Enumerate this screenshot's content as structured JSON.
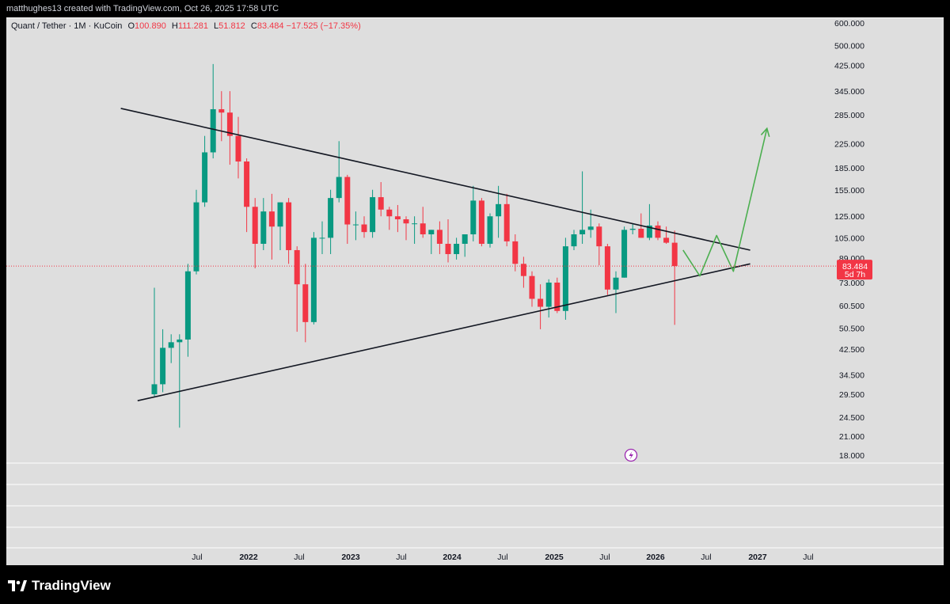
{
  "header": {
    "attribution": "matthughes13 created with TradingView.com, Oct 26, 2025 17:58 UTC"
  },
  "legend": {
    "symbol": "Quant / Tether · 1M · KuCoin",
    "open_label": "O",
    "open": "100.890",
    "high_label": "H",
    "high": "111.281",
    "low_label": "L",
    "low": "51.812",
    "close_label": "C",
    "close": "83.484",
    "change": "−17.525 (−17.35%)"
  },
  "price_badge": {
    "value": "83.484",
    "countdown": "5d 7h"
  },
  "footer": {
    "brand": "TradingView"
  },
  "colors": {
    "up": "#089981",
    "down": "#f23645",
    "background": "#dedede",
    "trendline": "#131722",
    "projection": "#4caf50"
  },
  "chart_data": {
    "type": "candlestick",
    "scale": "log",
    "ylim": [
      17,
      620
    ],
    "y_ticks": [
      "600.000",
      "500.000",
      "425.000",
      "345.000",
      "285.000",
      "225.000",
      "185.000",
      "155.000",
      "125.000",
      "105.000",
      "89.000",
      "73.000",
      "60.500",
      "50.500",
      "42.500",
      "34.500",
      "29.500",
      "24.500",
      "21.000",
      "18.000"
    ],
    "x_ticks": [
      "Jul",
      "2022",
      "Jul",
      "2023",
      "Jul",
      "2024",
      "Jul",
      "2025",
      "Jul",
      "2026",
      "Jul",
      "2027",
      "Jul"
    ],
    "candles": [
      {
        "t": "2021-04",
        "o": 29.5,
        "h": 70,
        "l": 29,
        "c": 32
      },
      {
        "t": "2021-05",
        "o": 32,
        "h": 50,
        "l": 30,
        "c": 43
      },
      {
        "t": "2021-06",
        "o": 43,
        "h": 48,
        "l": 38,
        "c": 45
      },
      {
        "t": "2021-07",
        "o": 45,
        "h": 48,
        "l": 22.5,
        "c": 46
      },
      {
        "t": "2021-08",
        "o": 46,
        "h": 85,
        "l": 40,
        "c": 80
      },
      {
        "t": "2021-09",
        "o": 80,
        "h": 155,
        "l": 78,
        "c": 140
      },
      {
        "t": "2021-10",
        "o": 140,
        "h": 240,
        "l": 135,
        "c": 210
      },
      {
        "t": "2021-11",
        "o": 210,
        "h": 430,
        "l": 200,
        "c": 298
      },
      {
        "t": "2021-12",
        "o": 298,
        "h": 345,
        "l": 230,
        "c": 290
      },
      {
        "t": "2022-01",
        "o": 290,
        "h": 345,
        "l": 190,
        "c": 240
      },
      {
        "t": "2022-02",
        "o": 240,
        "h": 280,
        "l": 170,
        "c": 195
      },
      {
        "t": "2022-03",
        "o": 195,
        "h": 200,
        "l": 110,
        "c": 135
      },
      {
        "t": "2022-04",
        "o": 135,
        "h": 145,
        "l": 82,
        "c": 100
      },
      {
        "t": "2022-05",
        "o": 100,
        "h": 145,
        "l": 95,
        "c": 130
      },
      {
        "t": "2022-06",
        "o": 130,
        "h": 150,
        "l": 88,
        "c": 115
      },
      {
        "t": "2022-07",
        "o": 115,
        "h": 140,
        "l": 95,
        "c": 140
      },
      {
        "t": "2022-08",
        "o": 140,
        "h": 145,
        "l": 85,
        "c": 95
      },
      {
        "t": "2022-09",
        "o": 95,
        "h": 98,
        "l": 49,
        "c": 72
      },
      {
        "t": "2022-10",
        "o": 72,
        "h": 85,
        "l": 45,
        "c": 53
      },
      {
        "t": "2022-11",
        "o": 53,
        "h": 110,
        "l": 52,
        "c": 105
      },
      {
        "t": "2022-12",
        "o": 105,
        "h": 120,
        "l": 92,
        "c": 105
      },
      {
        "t": "2023-01",
        "o": 105,
        "h": 155,
        "l": 92,
        "c": 145
      },
      {
        "t": "2023-02",
        "o": 145,
        "h": 230,
        "l": 140,
        "c": 172
      },
      {
        "t": "2023-03",
        "o": 172,
        "h": 175,
        "l": 100,
        "c": 117
      },
      {
        "t": "2023-04",
        "o": 117,
        "h": 130,
        "l": 103,
        "c": 117
      },
      {
        "t": "2023-05",
        "o": 117,
        "h": 125,
        "l": 105,
        "c": 110
      },
      {
        "t": "2023-06",
        "o": 110,
        "h": 155,
        "l": 105,
        "c": 146
      },
      {
        "t": "2023-07",
        "o": 146,
        "h": 165,
        "l": 125,
        "c": 132
      },
      {
        "t": "2023-08",
        "o": 132,
        "h": 135,
        "l": 112,
        "c": 125
      },
      {
        "t": "2023-09",
        "o": 125,
        "h": 137,
        "l": 110,
        "c": 122
      },
      {
        "t": "2023-10",
        "o": 122,
        "h": 125,
        "l": 103,
        "c": 118
      },
      {
        "t": "2023-11",
        "o": 118,
        "h": 125,
        "l": 100,
        "c": 118
      },
      {
        "t": "2023-12",
        "o": 118,
        "h": 135,
        "l": 105,
        "c": 108
      },
      {
        "t": "2024-01",
        "o": 108,
        "h": 112,
        "l": 92,
        "c": 112
      },
      {
        "t": "2024-02",
        "o": 112,
        "h": 120,
        "l": 92,
        "c": 100
      },
      {
        "t": "2024-03",
        "o": 100,
        "h": 122,
        "l": 86,
        "c": 92
      },
      {
        "t": "2024-04",
        "o": 92,
        "h": 105,
        "l": 88,
        "c": 100
      },
      {
        "t": "2024-05",
        "o": 100,
        "h": 108,
        "l": 90,
        "c": 108
      },
      {
        "t": "2024-06",
        "o": 108,
        "h": 160,
        "l": 102,
        "c": 142
      },
      {
        "t": "2024-07",
        "o": 142,
        "h": 145,
        "l": 98,
        "c": 100
      },
      {
        "t": "2024-08",
        "o": 100,
        "h": 128,
        "l": 97,
        "c": 125
      },
      {
        "t": "2024-09",
        "o": 125,
        "h": 160,
        "l": 105,
        "c": 138
      },
      {
        "t": "2024-10",
        "o": 138,
        "h": 150,
        "l": 98,
        "c": 102
      },
      {
        "t": "2024-11",
        "o": 102,
        "h": 108,
        "l": 80,
        "c": 85
      },
      {
        "t": "2024-12",
        "o": 85,
        "h": 90,
        "l": 70,
        "c": 77
      },
      {
        "t": "2025-01",
        "o": 77,
        "h": 80,
        "l": 60,
        "c": 64
      },
      {
        "t": "2025-02",
        "o": 64,
        "h": 72,
        "l": 50,
        "c": 60
      },
      {
        "t": "2025-03",
        "o": 60,
        "h": 75,
        "l": 55,
        "c": 73
      },
      {
        "t": "2025-04",
        "o": 73,
        "h": 76,
        "l": 57,
        "c": 58
      },
      {
        "t": "2025-05",
        "o": 58,
        "h": 105,
        "l": 54,
        "c": 98
      },
      {
        "t": "2025-06",
        "o": 98,
        "h": 112,
        "l": 95,
        "c": 108
      },
      {
        "t": "2025-07",
        "o": 108,
        "h": 180,
        "l": 100,
        "c": 112
      },
      {
        "t": "2025-08",
        "o": 112,
        "h": 132,
        "l": 105,
        "c": 115
      },
      {
        "t": "2025-09",
        "o": 115,
        "h": 118,
        "l": 84,
        "c": 98
      },
      {
        "t": "2025-10",
        "o": 98,
        "h": 100,
        "l": 66,
        "c": 69
      },
      {
        "t": "2025-11",
        "o": 69,
        "h": 80,
        "l": 57,
        "c": 76
      },
      {
        "t": "2025-12",
        "o": 76,
        "h": 115,
        "l": 76,
        "c": 112
      },
      {
        "t": "2026-01",
        "o": 112,
        "h": 118,
        "l": 108,
        "c": 113
      },
      {
        "t": "2026-02",
        "o": 113,
        "h": 128,
        "l": 105,
        "c": 105
      },
      {
        "t": "2026-03",
        "o": 105,
        "h": 138,
        "l": 103,
        "c": 116
      },
      {
        "t": "2026-04",
        "o": 116,
        "h": 120,
        "l": 103,
        "c": 105
      },
      {
        "t": "2026-05",
        "o": 105,
        "h": 115,
        "l": 100,
        "c": 100.89
      },
      {
        "t": "2026-06",
        "o": 100.89,
        "h": 111.281,
        "l": 51.812,
        "c": 83.484
      }
    ],
    "trendlines": [
      {
        "name": "upper",
        "from": {
          "t": "2020-12",
          "y": 300
        },
        "to": {
          "t": "2027-03",
          "y": 95
        }
      },
      {
        "name": "lower",
        "from": {
          "t": "2021-02",
          "y": 28
        },
        "to": {
          "t": "2027-03",
          "y": 85
        }
      }
    ],
    "projection": [
      {
        "t": "2026-07",
        "y": 95
      },
      {
        "t": "2026-09",
        "y": 77
      },
      {
        "t": "2026-11",
        "y": 107
      },
      {
        "t": "2027-01",
        "y": 80
      },
      {
        "t": "2027-05",
        "y": 255
      }
    ],
    "last_price_line": 83.484
  }
}
